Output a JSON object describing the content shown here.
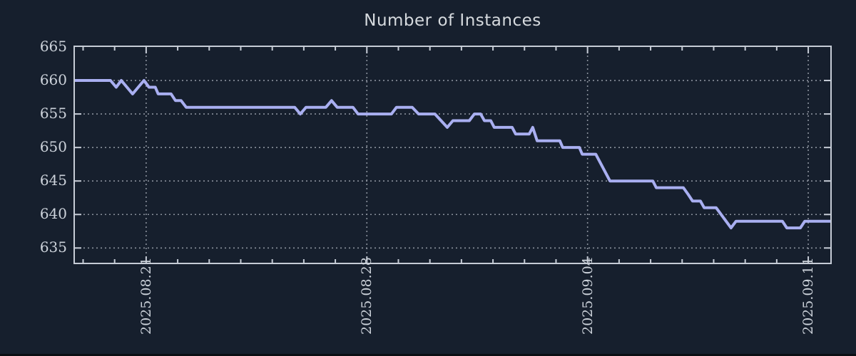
{
  "theme": {
    "background": "#161f2d",
    "line_color": "#a9aff1",
    "spine_color": "#c6ccd6",
    "grid_color": "#8a919c",
    "title_color": "#d6dade",
    "tick_label_color": "#ccd2da",
    "bottom_edge_color": "#0a0e13"
  },
  "chart_data": {
    "type": "line",
    "title": "Number of Instances",
    "xlabel": "",
    "ylabel": "",
    "x_unit": "days relative to 2025-08-21 00:00",
    "xlim": [
      -2.26,
      21.7
    ],
    "ylim": [
      632.8,
      665
    ],
    "grid": "dotted",
    "legend_position": "none",
    "x_major_ticks": [
      {
        "pos": 0,
        "label": "2025.08.21"
      },
      {
        "pos": 7,
        "label": "2025.08.28"
      },
      {
        "pos": 14,
        "label": "2025.09.04"
      },
      {
        "pos": 21,
        "label": "2025.09.11"
      }
    ],
    "x_minor_step": 1,
    "y_ticks": [
      635,
      640,
      645,
      650,
      655,
      660,
      665
    ],
    "y_grid_values": [
      635,
      640,
      645,
      650,
      655,
      660
    ],
    "series": [
      {
        "name": "instances",
        "points": [
          [
            -2.26,
            660
          ],
          [
            -1.13,
            660
          ],
          [
            -0.95,
            659
          ],
          [
            -0.79,
            660
          ],
          [
            -0.43,
            658
          ],
          [
            -0.07,
            660
          ],
          [
            0.09,
            659
          ],
          [
            0.29,
            659
          ],
          [
            0.38,
            658
          ],
          [
            0.79,
            658
          ],
          [
            0.93,
            657
          ],
          [
            1.11,
            657
          ],
          [
            1.27,
            656
          ],
          [
            4.71,
            656
          ],
          [
            4.89,
            655
          ],
          [
            5.07,
            656
          ],
          [
            5.7,
            656
          ],
          [
            5.88,
            657
          ],
          [
            6.06,
            656
          ],
          [
            6.56,
            656
          ],
          [
            6.72,
            655
          ],
          [
            7.78,
            655
          ],
          [
            7.94,
            656
          ],
          [
            8.44,
            656
          ],
          [
            8.64,
            655
          ],
          [
            9.16,
            655
          ],
          [
            9.55,
            653
          ],
          [
            9.73,
            654
          ],
          [
            10.25,
            654
          ],
          [
            10.41,
            655
          ],
          [
            10.61,
            655
          ],
          [
            10.73,
            654
          ],
          [
            10.93,
            654
          ],
          [
            11.04,
            653
          ],
          [
            11.61,
            653
          ],
          [
            11.72,
            652
          ],
          [
            12.15,
            652
          ],
          [
            12.26,
            653
          ],
          [
            12.4,
            651
          ],
          [
            13.12,
            651
          ],
          [
            13.21,
            650
          ],
          [
            13.74,
            650
          ],
          [
            13.83,
            649
          ],
          [
            14.26,
            649
          ],
          [
            14.71,
            645
          ],
          [
            16.07,
            645
          ],
          [
            16.18,
            644
          ],
          [
            17.04,
            644
          ],
          [
            17.19,
            643
          ],
          [
            17.33,
            642
          ],
          [
            17.58,
            642
          ],
          [
            17.7,
            641
          ],
          [
            18.08,
            641
          ],
          [
            18.55,
            638
          ],
          [
            18.71,
            639
          ],
          [
            20.18,
            639
          ],
          [
            20.32,
            638
          ],
          [
            20.75,
            638
          ],
          [
            20.89,
            639
          ],
          [
            21.7,
            639
          ]
        ]
      }
    ]
  }
}
